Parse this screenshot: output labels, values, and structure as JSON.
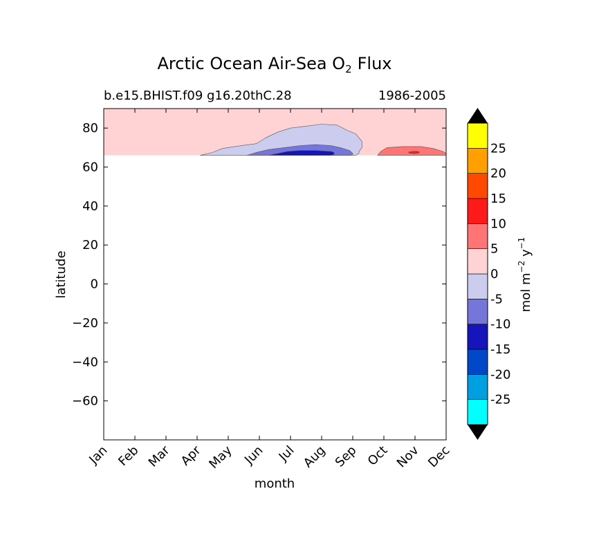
{
  "chart_data": {
    "type": "contour",
    "title": "Arctic Ocean Air-Sea O",
    "title_subscript": "2",
    "title_suffix": "Flux",
    "subtitle_left": "b.e15.BHIST.f09 g16.20thC.28",
    "subtitle_right": "1986-2005",
    "xlabel": "month",
    "ylabel": "latitude",
    "x_categories": [
      "Jan",
      "Feb",
      "Mar",
      "Apr",
      "May",
      "Jun",
      "Jul",
      "Aug",
      "Sep",
      "Oct",
      "Nov",
      "Dec"
    ],
    "xlim": [
      0,
      11
    ],
    "ylim": [
      -80,
      90
    ],
    "y_ticks": [
      80,
      60,
      40,
      20,
      0,
      -20,
      -40,
      -60
    ],
    "y_tick_labels": [
      "80",
      "60",
      "40",
      "20",
      "0",
      "−20",
      "−40",
      "−60"
    ],
    "data_ylim": [
      66,
      90
    ],
    "background_level_color": "#ffd3d3",
    "regions": [
      {
        "level": "-5 to 0",
        "color": "#cccdee",
        "x": [
          3.1,
          3.5,
          3.8,
          4.2,
          4.9,
          5.2,
          5.6,
          6.0,
          6.5,
          7.0,
          7.5,
          7.8,
          8.1,
          8.3,
          8.3,
          8.2,
          8.2,
          8.1
        ],
        "y": [
          66,
          67.5,
          69.5,
          70.5,
          72,
          75,
          78,
          80,
          81,
          82,
          81.5,
          79,
          77,
          73,
          70,
          68,
          67,
          66
        ]
      },
      {
        "level": "-10 to -5",
        "color": "#7576d9",
        "x": [
          4.6,
          4.9,
          5.3,
          5.8,
          6.3,
          6.8,
          7.3,
          7.6,
          7.9,
          8.0,
          8.0,
          7.9
        ],
        "y": [
          66,
          67.5,
          69,
          70,
          71,
          71.5,
          71,
          70,
          68.5,
          67,
          66.5,
          66
        ]
      },
      {
        "level": "-15 to -10",
        "color": "#1515bb",
        "x": [
          5.3,
          5.6,
          5.9,
          6.3,
          6.8,
          7.3,
          7.4,
          7.4,
          7.3
        ],
        "y": [
          66,
          67,
          68,
          68.5,
          68.5,
          68,
          67.5,
          66.5,
          66
        ]
      },
      {
        "level": "5 to 10",
        "color": "#ff7575",
        "x": [
          8.8,
          8.9,
          9.1,
          9.6,
          10.2,
          10.6,
          10.9,
          11.0,
          11.0
        ],
        "y": [
          66,
          68,
          70,
          70.5,
          70.5,
          69.5,
          68,
          67,
          66
        ]
      },
      {
        "level": "10 to 15",
        "color": "#ff1a1a",
        "x": [
          9.8,
          9.8,
          9.9,
          10.0,
          10.1,
          10.15,
          10.1,
          10.0,
          9.9
        ],
        "y": [
          67.2,
          67.7,
          68.0,
          68.1,
          68.0,
          67.6,
          67.1,
          66.9,
          67.0
        ]
      }
    ],
    "colorbar": {
      "label": "mol m",
      "label_sup1": "−2",
      "label_mid": " y",
      "label_sup2": "−1",
      "extend": "both",
      "extend_color": "#000000",
      "levels_low_to_high": [
        {
          "color": "#00ffff"
        },
        {
          "color": "#00a0e0"
        },
        {
          "color": "#0048c8"
        },
        {
          "color": "#1515bb"
        },
        {
          "color": "#7576d9"
        },
        {
          "color": "#cccdee"
        },
        {
          "color": "#ffd3d3"
        },
        {
          "color": "#ff7575"
        },
        {
          "color": "#ff1a1a"
        },
        {
          "color": "#ff4800"
        },
        {
          "color": "#ff9f00"
        },
        {
          "color": "#ffff00"
        }
      ],
      "tick_labels_low_to_high": [
        "-25",
        "-20",
        "-15",
        "-10",
        "-5",
        "0",
        "5",
        "10",
        "15",
        "20",
        "25"
      ]
    }
  }
}
